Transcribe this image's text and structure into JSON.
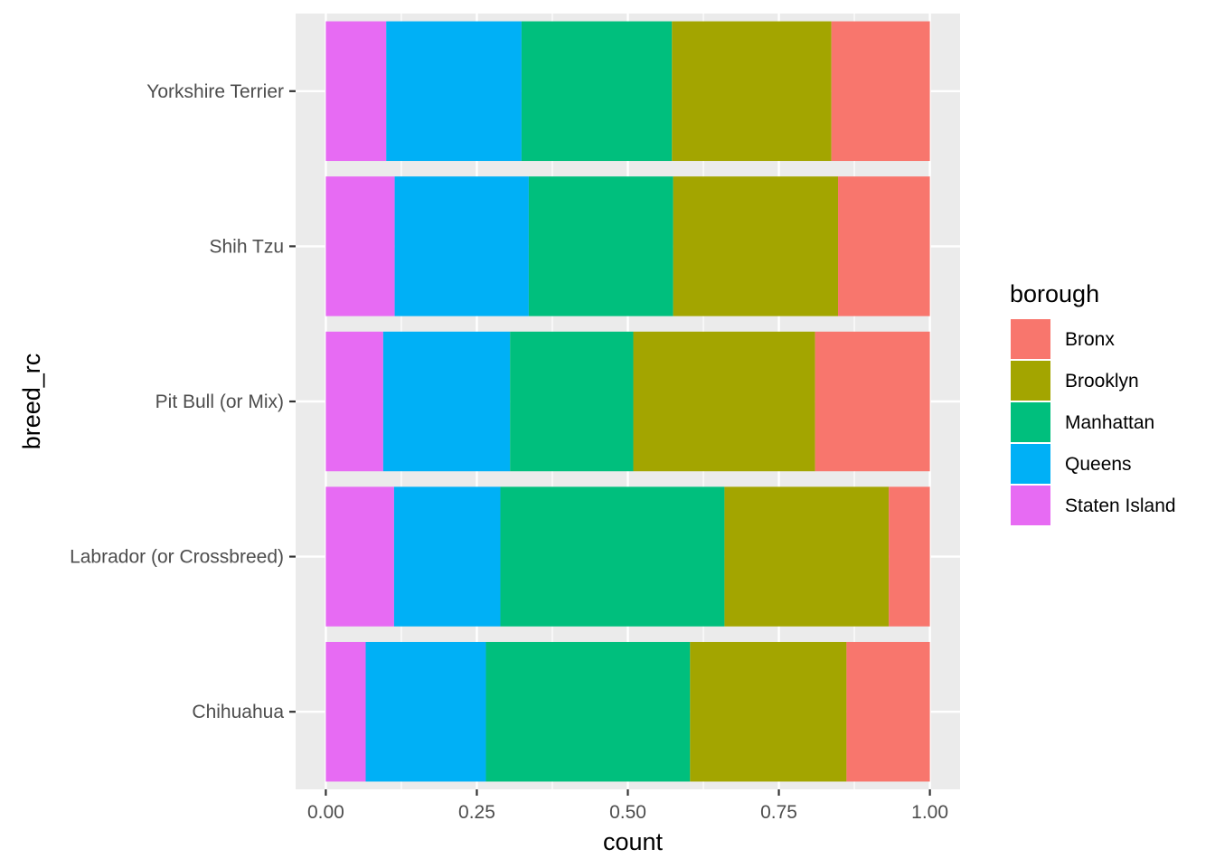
{
  "chart_data": {
    "type": "bar",
    "orientation": "horizontal",
    "stacked": true,
    "title": "",
    "xlabel": "count",
    "ylabel": "breed_rc",
    "xlim": [
      -0.05,
      1.05
    ],
    "x_ticks": [
      0,
      0.25,
      0.5,
      0.75,
      1
    ],
    "x_tick_labels": [
      "0.00",
      "0.25",
      "0.50",
      "0.75",
      "1.00"
    ],
    "categories": [
      "Chihuahua",
      "Labrador (or Crossbreed)",
      "Pit Bull (or Mix)",
      "Shih Tzu",
      "Yorkshire Terrier"
    ],
    "stack_order": [
      "Staten Island",
      "Queens",
      "Manhattan",
      "Brooklyn",
      "Bronx"
    ],
    "series": [
      {
        "name": "Bronx",
        "color": "#F8766D",
        "values": [
          0.138,
          0.068,
          0.19,
          0.152,
          0.163
        ]
      },
      {
        "name": "Brooklyn",
        "color": "#A3A500",
        "values": [
          0.259,
          0.272,
          0.301,
          0.273,
          0.264
        ]
      },
      {
        "name": "Manhattan",
        "color": "#00BF7D",
        "values": [
          0.338,
          0.371,
          0.204,
          0.239,
          0.249
        ]
      },
      {
        "name": "Queens",
        "color": "#00B0F6",
        "values": [
          0.199,
          0.176,
          0.21,
          0.222,
          0.224
        ]
      },
      {
        "name": "Staten Island",
        "color": "#E76BF3",
        "values": [
          0.066,
          0.113,
          0.095,
          0.114,
          0.1
        ]
      }
    ],
    "legend": {
      "title": "borough",
      "position": "right",
      "entries": [
        "Bronx",
        "Brooklyn",
        "Manhattan",
        "Queens",
        "Staten Island"
      ]
    },
    "grid": true,
    "panel_background": "#EBEBEB"
  }
}
